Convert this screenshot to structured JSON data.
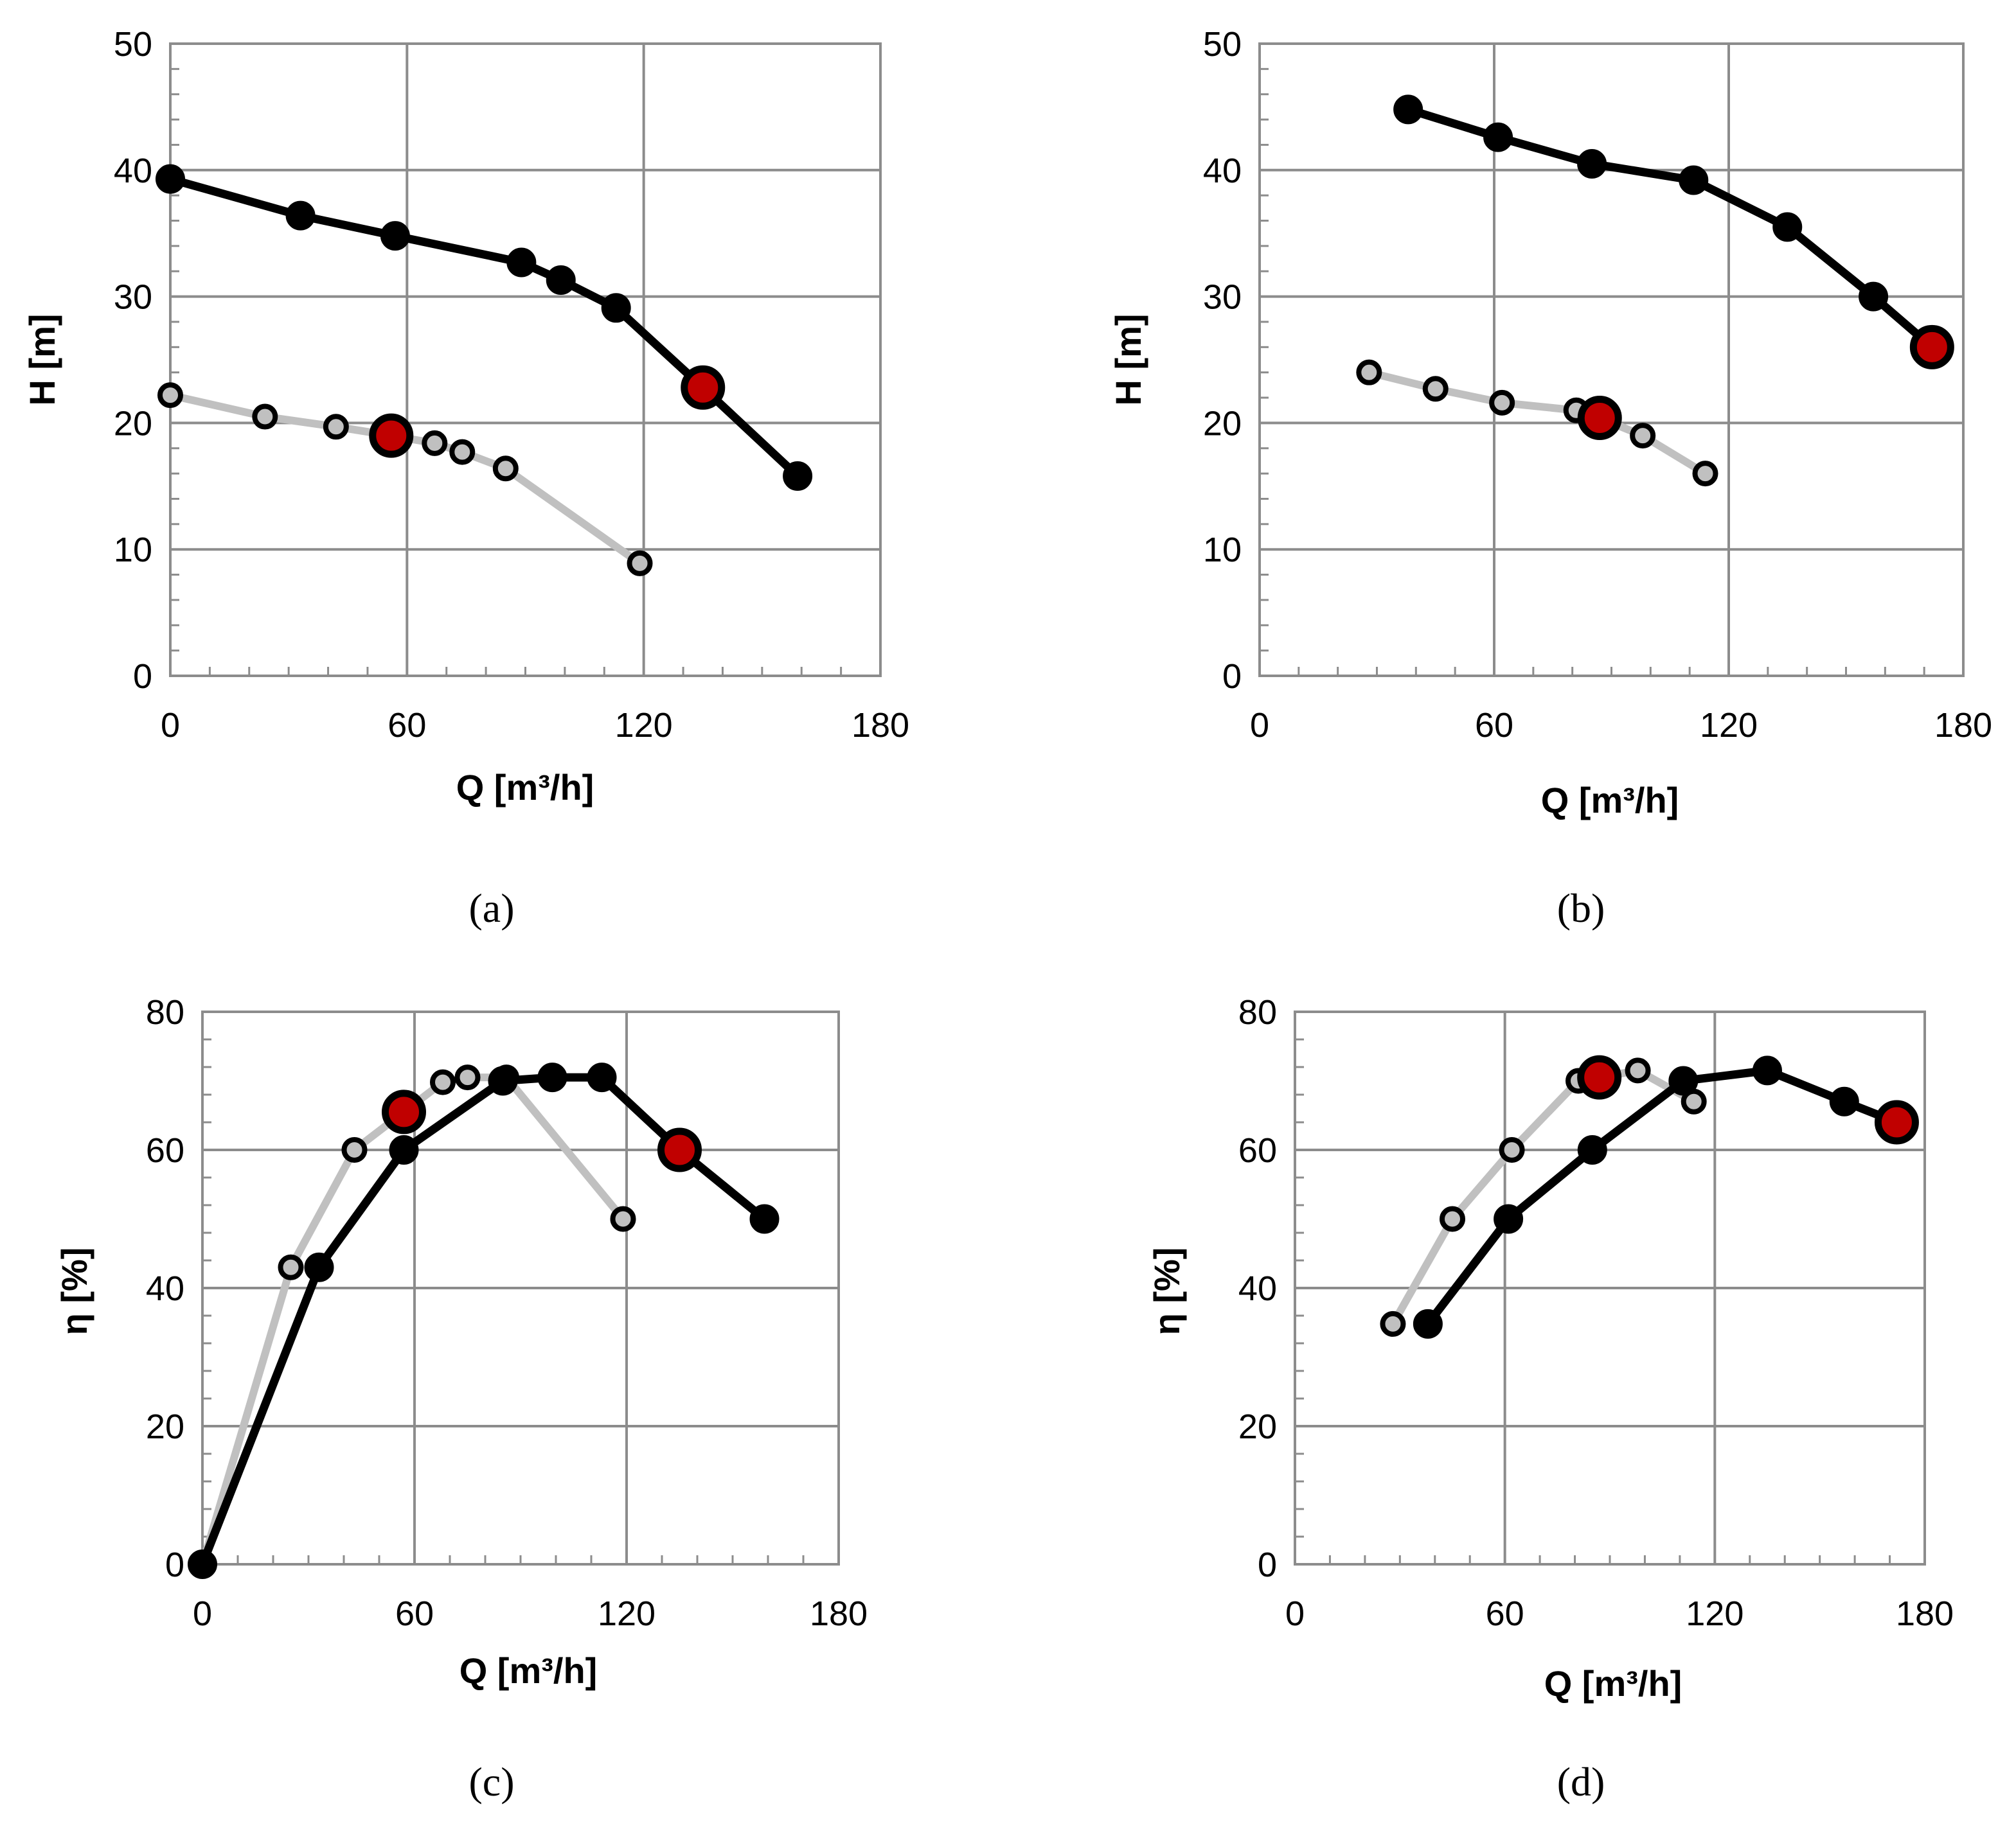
{
  "chart_data": [
    {
      "type": "line",
      "panel": "(a)",
      "xlabel": "Q [m³/h]",
      "ylabel": "H [m]",
      "xlim": [
        0,
        180
      ],
      "ylim": [
        0,
        50
      ],
      "xticks": [
        0,
        60,
        120,
        180
      ],
      "yticks": [
        0,
        10,
        20,
        30,
        40,
        50
      ],
      "grid": true,
      "series": [
        {
          "name": "black",
          "color": "#000000",
          "x": [
            0,
            33,
            57,
            89,
            99,
            113,
            135,
            159
          ],
          "y": [
            39.3,
            36.4,
            34.8,
            32.7,
            31.3,
            29.1,
            22.8,
            15.8
          ],
          "highlight_index": 6
        },
        {
          "name": "gray",
          "color": "#c0c0c0",
          "x": [
            0,
            24,
            42,
            56,
            67,
            74,
            85,
            119
          ],
          "y": [
            22.2,
            20.5,
            19.7,
            19.0,
            18.4,
            17.7,
            16.4,
            8.9
          ],
          "highlight_index": 3
        }
      ]
    },
    {
      "type": "line",
      "panel": "(b)",
      "xlabel": "Q [m³/h]",
      "ylabel": "H [m]",
      "xlim": [
        0,
        180
      ],
      "ylim": [
        0,
        50
      ],
      "xticks": [
        0,
        60,
        120,
        180
      ],
      "yticks": [
        0,
        10,
        20,
        30,
        40,
        50
      ],
      "grid": true,
      "series": [
        {
          "name": "black",
          "color": "#000000",
          "x": [
            38,
            61,
            85,
            111,
            135,
            157,
            172
          ],
          "y": [
            44.8,
            42.6,
            40.5,
            39.2,
            35.5,
            30.0,
            26.0
          ],
          "highlight_index": 6
        },
        {
          "name": "gray",
          "color": "#c0c0c0",
          "x": [
            28,
            45,
            62,
            81,
            87,
            98,
            114
          ],
          "y": [
            24.0,
            22.7,
            21.6,
            21.0,
            20.4,
            19.0,
            16.0
          ],
          "highlight_index": 4
        }
      ]
    },
    {
      "type": "line",
      "panel": "(c)",
      "xlabel": "Q [m³/h]",
      "ylabel": "η [%]",
      "xlim": [
        0,
        180
      ],
      "ylim": [
        0,
        80
      ],
      "xticks": [
        0,
        60,
        120,
        180
      ],
      "yticks": [
        0,
        20,
        40,
        60,
        80
      ],
      "grid": true,
      "series": [
        {
          "name": "black",
          "color": "#000000",
          "x": [
            0,
            33,
            57,
            85,
            99,
            113,
            135,
            159
          ],
          "y": [
            0,
            43,
            60,
            70,
            70.5,
            70.5,
            60,
            50
          ],
          "highlight_index": 6
        },
        {
          "name": "gray",
          "color": "#c0c0c0",
          "x": [
            0,
            25,
            43,
            57,
            68,
            75,
            86,
            119
          ],
          "y": [
            0,
            43,
            60,
            65.5,
            69.8,
            70.5,
            70.5,
            50
          ],
          "highlight_index": 3
        }
      ]
    },
    {
      "type": "line",
      "panel": "(d)",
      "xlabel": "Q [m³/h]",
      "ylabel": "η [%]",
      "xlim": [
        0,
        180
      ],
      "ylim": [
        0,
        80
      ],
      "xticks": [
        0,
        60,
        120,
        180
      ],
      "yticks": [
        0,
        20,
        40,
        60,
        80
      ],
      "grid": true,
      "series": [
        {
          "name": "black",
          "color": "#000000",
          "x": [
            38,
            61,
            85,
            111,
            135,
            157,
            172
          ],
          "y": [
            34.8,
            50,
            60,
            70,
            71.5,
            67,
            64
          ],
          "highlight_index": 6
        },
        {
          "name": "gray",
          "color": "#c0c0c0",
          "x": [
            28,
            45,
            62,
            81,
            87,
            98,
            114
          ],
          "y": [
            34.8,
            50,
            60,
            70,
            70.5,
            71.5,
            67
          ],
          "highlight_index": 4
        }
      ]
    }
  ],
  "colors": {
    "highlight_fill": "#c00000",
    "gray_marker_fill": "#c0c0c0",
    "black": "#000000"
  }
}
